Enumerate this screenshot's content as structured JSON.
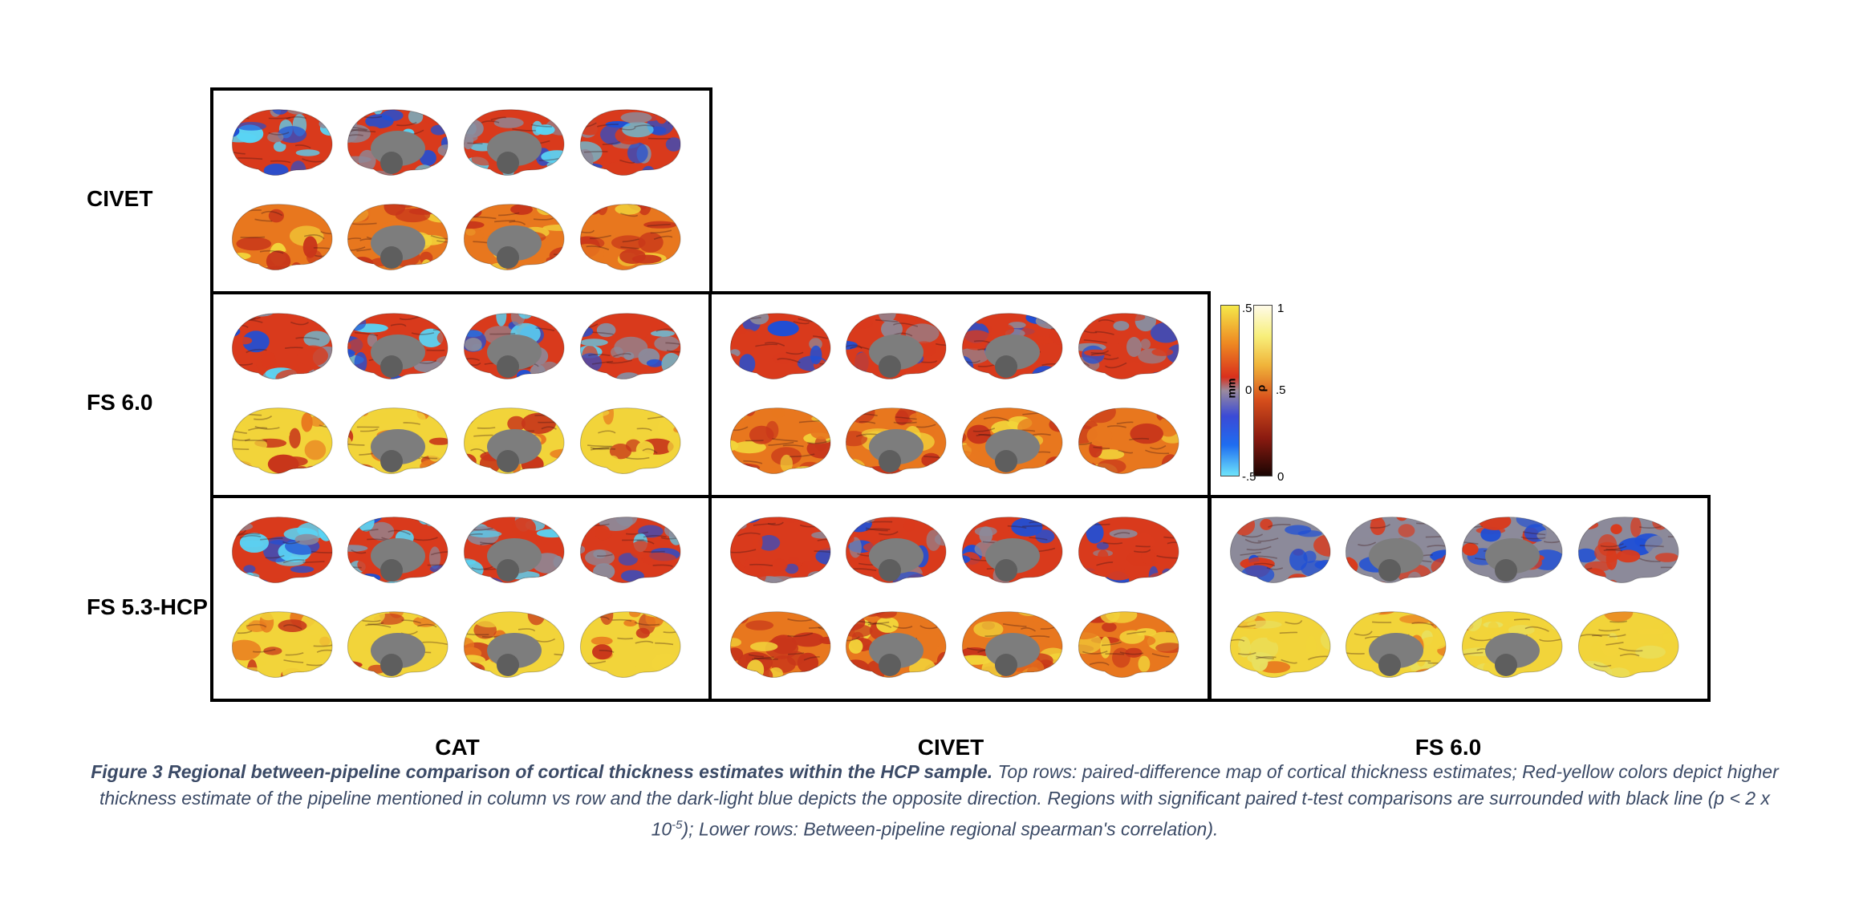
{
  "row_labels": [
    "CIVET",
    "FS 6.0",
    "FS 5.3-HCP"
  ],
  "col_labels": [
    "CAT",
    "CIVET",
    "FS 6.0"
  ],
  "colorbar_diff": {
    "unit": "mm",
    "max": ".5",
    "mid": "0",
    "min": "-.5"
  },
  "colorbar_corr": {
    "unit": "ρ",
    "max": "1",
    "mid": ".5",
    "min": "0"
  },
  "caption": {
    "bold": "Figure 3 Regional between-pipeline comparison of cortical thickness estimates within the HCP sample.",
    "text1": " Top rows: paired-difference map of cortical thickness estimates; Red-yellow colors depict higher thickness estimate of the pipeline mentioned in column vs row and the dark-light blue depicts the opposite direction. Regions with significant paired t-test comparisons are surrounded with black line (p < 2 x 10",
    "sup": "-5",
    "text2": "); Lower rows: Between-pipeline regional spearman's correlation)."
  },
  "colors": {
    "diff_red": "#d93a1c",
    "diff_blue": "#1f4fd6",
    "diff_light_blue": "#59d4f5",
    "diff_gray": "#8c8a9a",
    "diff_yellow": "#f5e84a",
    "corr_orange": "#e8771e",
    "corr_yellow": "#f2d43a",
    "corr_red": "#c8361a",
    "medial_gray": "#7d7d7d"
  },
  "panels": [
    {
      "row": 0,
      "col": 0,
      "diff_style": "blue_heavy",
      "corr_style": "orange"
    },
    {
      "row": 1,
      "col": 0,
      "diff_style": "red_blue",
      "corr_style": "yellow_orange"
    },
    {
      "row": 1,
      "col": 1,
      "diff_style": "red_gray",
      "corr_style": "orange"
    },
    {
      "row": 2,
      "col": 0,
      "diff_style": "red_blue",
      "corr_style": "yellow_orange"
    },
    {
      "row": 2,
      "col": 1,
      "diff_style": "red_gray",
      "corr_style": "orange"
    },
    {
      "row": 2,
      "col": 2,
      "diff_style": "gray_blue",
      "corr_style": "yellow"
    }
  ]
}
